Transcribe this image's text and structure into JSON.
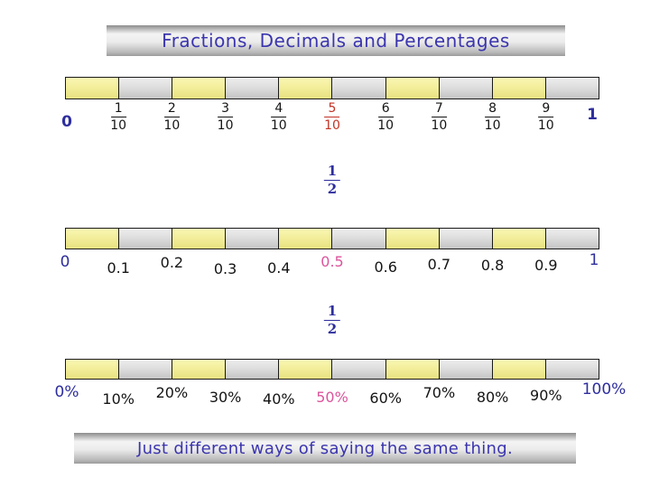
{
  "title": {
    "text": "Fractions, Decimals and Percentages"
  },
  "footer": {
    "text": "Just different ways of saying the same thing."
  },
  "half": {
    "num": "1",
    "den": "2"
  },
  "colors": {
    "accent_navy": "#2e2e9e",
    "highlight_red": "#c23326",
    "highlight_pink": "#db559c",
    "title_text": "#3b35ae",
    "segment_yellow": "#f3ee9b",
    "segment_gray": "#d9d9d9"
  },
  "lines": {
    "fractions": {
      "start": "0",
      "end": "1",
      "ticks": [
        {
          "num": "1",
          "den": "10"
        },
        {
          "num": "2",
          "den": "10"
        },
        {
          "num": "3",
          "den": "10"
        },
        {
          "num": "4",
          "den": "10"
        },
        {
          "num": "5",
          "den": "10",
          "highlight": true
        },
        {
          "num": "6",
          "den": "10"
        },
        {
          "num": "7",
          "den": "10"
        },
        {
          "num": "8",
          "den": "10"
        },
        {
          "num": "9",
          "den": "10"
        }
      ]
    },
    "decimals": {
      "start": "0",
      "end": "1",
      "ticks": [
        {
          "label": "0.1"
        },
        {
          "label": "0.2"
        },
        {
          "label": "0.3"
        },
        {
          "label": "0.4"
        },
        {
          "label": "0.5",
          "highlight": true
        },
        {
          "label": "0.6"
        },
        {
          "label": "0.7"
        },
        {
          "label": "0.8"
        },
        {
          "label": "0.9"
        }
      ]
    },
    "percentages": {
      "start": "0%",
      "end": "100%",
      "ticks": [
        {
          "label": "10%"
        },
        {
          "label": "20%"
        },
        {
          "label": "30%"
        },
        {
          "label": "40%"
        },
        {
          "label": "50%",
          "highlight": true
        },
        {
          "label": "60%"
        },
        {
          "label": "70%"
        },
        {
          "label": "80%"
        },
        {
          "label": "90%"
        }
      ]
    }
  }
}
